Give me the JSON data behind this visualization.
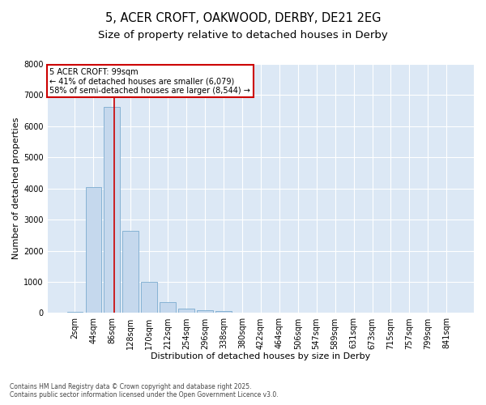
{
  "title_line1": "5, ACER CROFT, OAKWOOD, DERBY, DE21 2EG",
  "title_line2": "Size of property relative to detached houses in Derby",
  "xlabel": "Distribution of detached houses by size in Derby",
  "ylabel": "Number of detached properties",
  "categories": [
    "2sqm",
    "44sqm",
    "86sqm",
    "128sqm",
    "170sqm",
    "212sqm",
    "254sqm",
    "296sqm",
    "338sqm",
    "380sqm",
    "422sqm",
    "464sqm",
    "506sqm",
    "547sqm",
    "589sqm",
    "631sqm",
    "673sqm",
    "715sqm",
    "757sqm",
    "799sqm",
    "841sqm"
  ],
  "bar_values": [
    50,
    4050,
    6620,
    2650,
    1010,
    340,
    130,
    100,
    60,
    0,
    0,
    0,
    0,
    0,
    0,
    0,
    0,
    0,
    0,
    0,
    0
  ],
  "bar_color": "#c5d8ed",
  "bar_edge_color": "#7aabcf",
  "ylim": [
    0,
    8000
  ],
  "yticks": [
    0,
    1000,
    2000,
    3000,
    4000,
    5000,
    6000,
    7000,
    8000
  ],
  "vline_color": "#cc0000",
  "vline_pos": 2.13,
  "annotation_title": "5 ACER CROFT: 99sqm",
  "annotation_line2": "← 41% of detached houses are smaller (6,079)",
  "annotation_line3": "58% of semi-detached houses are larger (8,544) →",
  "annotation_box_facecolor": "#ffffff",
  "annotation_border_color": "#cc0000",
  "footer_line1": "Contains HM Land Registry data © Crown copyright and database right 2025.",
  "footer_line2": "Contains public sector information licensed under the Open Government Licence v3.0.",
  "fig_facecolor": "#ffffff",
  "plot_bg_color": "#dce8f5",
  "grid_color": "#ffffff",
  "title_fontsize": 10.5,
  "subtitle_fontsize": 9.5,
  "axis_fontsize": 8,
  "tick_fontsize": 7,
  "footer_fontsize": 5.5,
  "annotation_fontsize": 7
}
